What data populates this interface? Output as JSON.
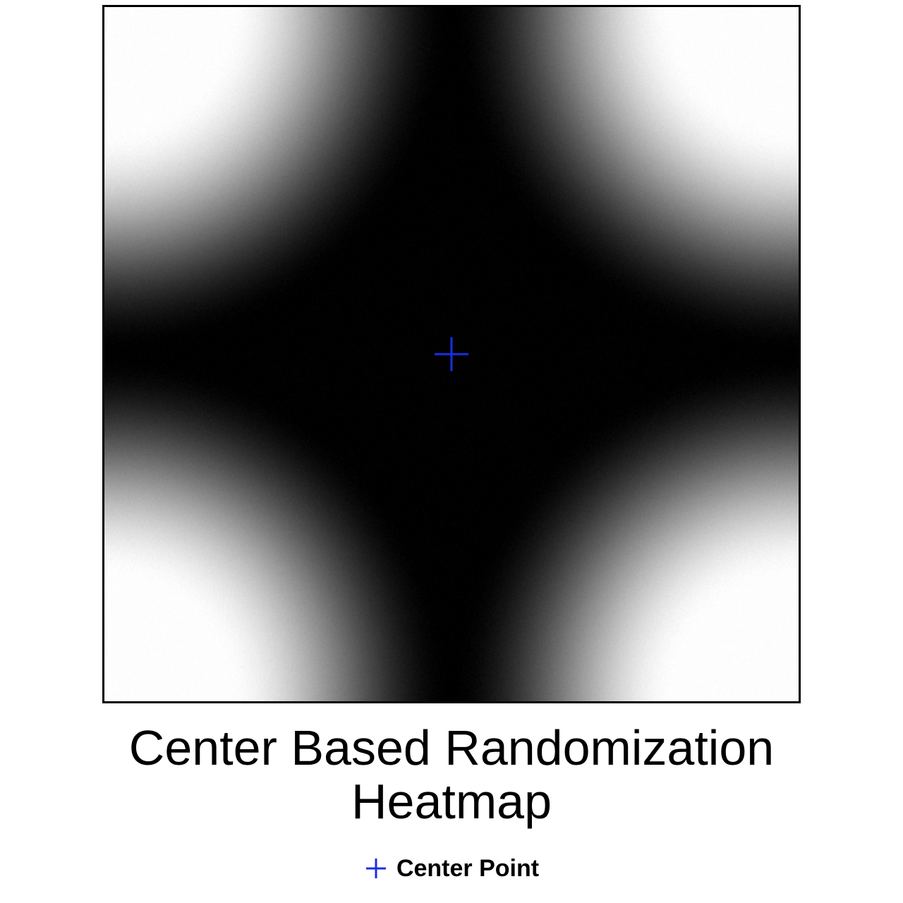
{
  "chart_data": {
    "type": "heatmap",
    "title": "Center Based Randomization\nHeatmap",
    "title_lines": [
      "Center Based Randomization",
      "Heatmap"
    ],
    "xlabel": "",
    "ylabel": "",
    "grid": false,
    "colormap": "grayscale",
    "color_low": "#000000",
    "color_high": "#ffffff",
    "center_point": {
      "x": 0.5,
      "y": 0.5,
      "marker": "plus",
      "color": "#1a2ee6"
    },
    "legend": {
      "placement": "bottom-center",
      "entries": [
        {
          "label": "Center Point",
          "marker": "plus",
          "color": "#1a2ee6"
        }
      ]
    }
  }
}
